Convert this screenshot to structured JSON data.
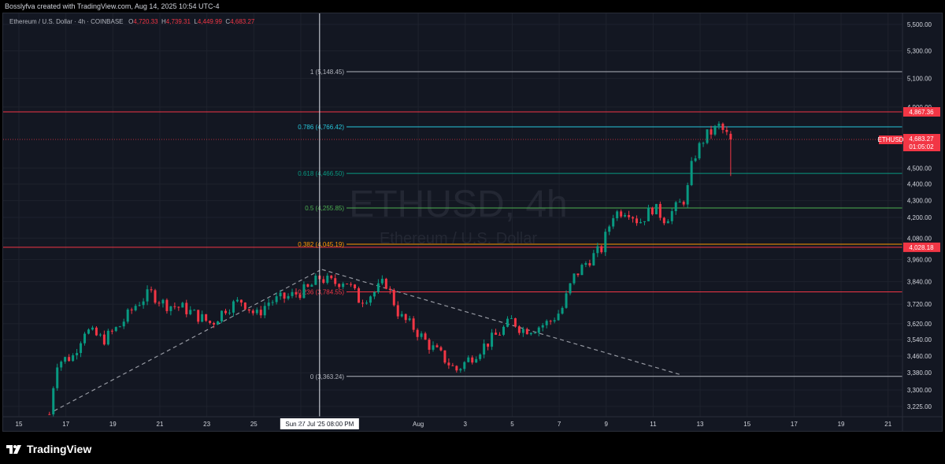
{
  "header": {
    "text": "Bosslyfva created with TradingView.com, Aug 14, 2025 10:54 UTC-4"
  },
  "legend": {
    "symbol_desc": "Ethereum / U.S. Dollar · 4h · COINBASE",
    "o_label": "O",
    "o_value": "4,720.33",
    "h_label": "H",
    "h_value": "4,739.31",
    "l_label": "L",
    "l_value": "4,449.99",
    "c_label": "C",
    "c_value": "4,683.27"
  },
  "watermark": {
    "title": "ETHUSD, 4h",
    "subtitle": "Ethereum / U.S. Dollar"
  },
  "crosshair": {
    "time_label": "Sun 27 Jul '25   08:00 PM"
  },
  "price_tag": {
    "symbol": "ETHUSD",
    "price": "4,683.27",
    "countdown": "01:05:02"
  },
  "footer": {
    "logo_text": "TradingView"
  },
  "colors": {
    "background": "#131722",
    "up": "#089981",
    "down": "#f23645",
    "red_line": "#f23645",
    "fib_0_1": "#b2b5be",
    "fib_0786": "#26c6da",
    "fib_0618": "#089981",
    "fib_05": "#4caf50",
    "fib_0382": "#ff9800",
    "fib_0236": "#f23645"
  },
  "chart_data": {
    "type": "candlestick",
    "symbol": "ETHUSD",
    "timeframe": "4h",
    "price_axis": {
      "scale": "log",
      "range": [
        3180,
        5600
      ],
      "ticks": [
        3225,
        3300,
        3380,
        3460,
        3540,
        3620,
        3720,
        3840,
        3960,
        4080,
        4200,
        4300,
        4400,
        4500,
        4900,
        5100,
        5300,
        5500
      ],
      "tick_labels": [
        "3,225.00",
        "3,300.00",
        "3,380.00",
        "3,460.00",
        "3,540.00",
        "3,620.00",
        "3,720.00",
        "3,840.00",
        "3,960.00",
        "4,080.00",
        "4,200.00",
        "4,300.00",
        "4,400.00",
        "4,500.00",
        "4,900.00",
        "5,100.00",
        "5,300.00",
        "5,500.00"
      ]
    },
    "time_axis": {
      "range_days": [
        14.0,
        22.0
      ],
      "ticks": [
        {
          "day": 15,
          "label": "15"
        },
        {
          "day": 17,
          "label": "17"
        },
        {
          "day": 19,
          "label": "19"
        },
        {
          "day": 21,
          "label": "21"
        },
        {
          "day": 23,
          "label": "23"
        },
        {
          "day": 25,
          "label": "25"
        },
        {
          "day": 27,
          "label": "27"
        },
        {
          "day": 32,
          "label": "Aug"
        },
        {
          "day": 34,
          "label": "3"
        },
        {
          "day": 36,
          "label": "5"
        },
        {
          "day": 38,
          "label": "7"
        },
        {
          "day": 40,
          "label": "9"
        },
        {
          "day": 42,
          "label": "11"
        },
        {
          "day": 44,
          "label": "13"
        },
        {
          "day": 46,
          "label": "15"
        },
        {
          "day": 48,
          "label": "17"
        },
        {
          "day": 50,
          "label": "19"
        },
        {
          "day": 52,
          "label": "21"
        }
      ]
    },
    "horizontal_lines": [
      {
        "price": 4867.36,
        "label": "4,867.36",
        "color": "#f23645"
      },
      {
        "price": 4028.18,
        "label": "4,028.18",
        "color": "#f23645"
      }
    ],
    "fibonacci": [
      {
        "level": "1",
        "price": 5148.45,
        "label": "1 (5,148.45)",
        "color": "#b2b5be"
      },
      {
        "level": "0.786",
        "price": 4766.42,
        "label": "0.786 (4,766.42)",
        "color": "#26c6da"
      },
      {
        "level": "0.618",
        "price": 4466.5,
        "label": "0.618 (4,466.50)",
        "color": "#089981"
      },
      {
        "level": "0.5",
        "price": 4255.85,
        "label": "0.5 (4,255.85)",
        "color": "#4caf50"
      },
      {
        "level": "0.382",
        "price": 4045.19,
        "label": "0.382 (4,045.19)",
        "color": "#ff9800"
      },
      {
        "level": "0.236",
        "price": 3784.55,
        "label": "0.236 (3,784.55)",
        "color": "#f23645"
      },
      {
        "level": "0",
        "price": 3363.24,
        "label": "0 (3,363.24)",
        "color": "#b2b5be"
      }
    ],
    "trendlines": [
      {
        "from": {
          "day": 16.5,
          "price": 3205
        },
        "to": {
          "day": 27.8,
          "price": 3900
        }
      },
      {
        "from": {
          "day": 27.9,
          "price": 3905
        },
        "to": {
          "day": 43.2,
          "price": 3370
        }
      }
    ],
    "crosshair_day": 27.8,
    "last_price": 4683.27,
    "path": [
      [
        16.3,
        3190
      ],
      [
        16.6,
        3430
      ],
      [
        17.3,
        3460
      ],
      [
        17.8,
        3590
      ],
      [
        18.6,
        3540
      ],
      [
        19.3,
        3610
      ],
      [
        20.0,
        3720
      ],
      [
        20.6,
        3780
      ],
      [
        21.2,
        3720
      ],
      [
        22.0,
        3700
      ],
      [
        22.6,
        3660
      ],
      [
        23.2,
        3620
      ],
      [
        23.8,
        3700
      ],
      [
        24.5,
        3740
      ],
      [
        25.1,
        3660
      ],
      [
        25.6,
        3730
      ],
      [
        26.5,
        3760
      ],
      [
        27.3,
        3800
      ],
      [
        27.8,
        3860
      ],
      [
        28.4,
        3830
      ],
      [
        28.9,
        3850
      ],
      [
        29.5,
        3740
      ],
      [
        30.1,
        3780
      ],
      [
        30.6,
        3840
      ],
      [
        31.2,
        3660
      ],
      [
        31.8,
        3600
      ],
      [
        32.4,
        3520
      ],
      [
        33.0,
        3460
      ],
      [
        33.6,
        3390
      ],
      [
        34.2,
        3450
      ],
      [
        34.8,
        3510
      ],
      [
        35.5,
        3580
      ],
      [
        36.0,
        3640
      ],
      [
        36.4,
        3590
      ],
      [
        37.0,
        3600
      ],
      [
        37.6,
        3630
      ],
      [
        38.1,
        3690
      ],
      [
        38.6,
        3860
      ],
      [
        39.2,
        3950
      ],
      [
        39.8,
        4020
      ],
      [
        40.3,
        4220
      ],
      [
        40.9,
        4250
      ],
      [
        41.4,
        4170
      ],
      [
        42.0,
        4260
      ],
      [
        42.5,
        4190
      ],
      [
        43.0,
        4260
      ],
      [
        43.4,
        4320
      ],
      [
        43.7,
        4560
      ],
      [
        44.2,
        4700
      ],
      [
        44.8,
        4770
      ],
      [
        45.2,
        4700
      ],
      [
        45.4,
        4683.27
      ]
    ]
  }
}
